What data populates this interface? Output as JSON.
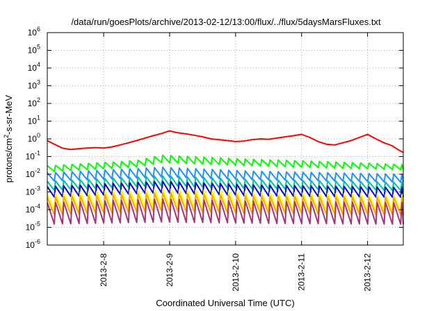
{
  "chart_data": {
    "type": "line",
    "title": "/data/run/goesPlots/archive/2013-02-12/13:00/flux/../flux/5daysMarsFluxes.txt",
    "xlabel": "Coordinated Universal Time (UTC)",
    "ylabel_parts": {
      "base": "protons/cm",
      "sup": "2",
      "rest": "-s-sr-MeV"
    },
    "y_scale": "log",
    "ylim": [
      1e-06,
      1000000.0
    ],
    "y_ticks": [
      {
        "value": 1e-06,
        "base": "10",
        "exp": "-6"
      },
      {
        "value": 1e-05,
        "base": "10",
        "exp": "-5"
      },
      {
        "value": 0.0001,
        "base": "10",
        "exp": "-4"
      },
      {
        "value": 0.001,
        "base": "10",
        "exp": "-3"
      },
      {
        "value": 0.01,
        "base": "10",
        "exp": "-2"
      },
      {
        "value": 0.1,
        "base": "10",
        "exp": "-1"
      },
      {
        "value": 1,
        "base": "10",
        "exp": "0"
      },
      {
        "value": 10,
        "base": "10",
        "exp": "1"
      },
      {
        "value": 100,
        "base": "10",
        "exp": "2"
      },
      {
        "value": 1000,
        "base": "10",
        "exp": "3"
      },
      {
        "value": 10000,
        "base": "10",
        "exp": "4"
      },
      {
        "value": 100000,
        "base": "10",
        "exp": "5"
      },
      {
        "value": 1000000,
        "base": "10",
        "exp": "6"
      }
    ],
    "xlim": [
      "2013-02-07T03:30",
      "2013-02-12T13:00"
    ],
    "x_ticks": [
      {
        "value": "2013-02-08T00:00",
        "label": "2013-2-8"
      },
      {
        "value": "2013-02-09T00:00",
        "label": "2013-2-9"
      },
      {
        "value": "2013-02-10T00:00",
        "label": "2013-2-10"
      },
      {
        "value": "2013-02-11T00:00",
        "label": "2013-2-11"
      },
      {
        "value": "2013-02-12T00:00",
        "label": "2013-2-12"
      }
    ],
    "grid": true,
    "series": [
      {
        "color": "#ff0000",
        "sawtooth": false,
        "x": [
          "2013-02-07T03:30",
          "2013-02-07T06:00",
          "2013-02-07T09:00",
          "2013-02-07T12:00",
          "2013-02-07T15:00",
          "2013-02-07T18:00",
          "2013-02-07T21:00",
          "2013-02-08T00:00",
          "2013-02-08T03:00",
          "2013-02-08T06:00",
          "2013-02-08T09:00",
          "2013-02-08T12:00",
          "2013-02-08T15:00",
          "2013-02-08T18:00",
          "2013-02-08T21:00",
          "2013-02-09T00:00",
          "2013-02-09T03:00",
          "2013-02-09T06:00",
          "2013-02-09T09:00",
          "2013-02-09T12:00",
          "2013-02-09T15:00",
          "2013-02-09T18:00",
          "2013-02-09T21:00",
          "2013-02-10T00:00",
          "2013-02-10T03:00",
          "2013-02-10T06:00",
          "2013-02-10T09:00",
          "2013-02-10T12:00",
          "2013-02-10T15:00",
          "2013-02-10T18:00",
          "2013-02-10T21:00",
          "2013-02-11T00:00",
          "2013-02-11T03:00",
          "2013-02-11T06:00",
          "2013-02-11T09:00",
          "2013-02-11T12:00",
          "2013-02-11T15:00",
          "2013-02-11T18:00",
          "2013-02-11T21:00",
          "2013-02-12T00:00",
          "2013-02-12T03:00",
          "2013-02-12T06:00",
          "2013-02-12T09:00",
          "2013-02-12T11:00",
          "2013-02-12T13:00"
        ],
        "y": [
          0.8,
          0.5,
          0.3,
          0.25,
          0.28,
          0.3,
          0.32,
          0.3,
          0.35,
          0.45,
          0.6,
          0.8,
          1.1,
          1.5,
          2.0,
          2.8,
          2.2,
          1.9,
          1.6,
          1.3,
          1.0,
          0.9,
          0.8,
          0.7,
          0.75,
          0.9,
          1.0,
          0.95,
          1.1,
          1.3,
          1.5,
          1.8,
          1.2,
          0.7,
          0.5,
          0.45,
          0.6,
          0.8,
          1.2,
          1.8,
          1.0,
          0.6,
          0.4,
          0.25,
          0.17
        ]
      },
      {
        "color": "#00ff00",
        "sawtooth": true,
        "period_hours": 3,
        "x": [
          "2013-02-07T03:30",
          "2013-02-08T12:00",
          "2013-02-08T21:00",
          "2013-02-10T06:00",
          "2013-02-11T12:00",
          "2013-02-12T13:00"
        ],
        "peak": [
          0.03,
          0.06,
          0.12,
          0.07,
          0.05,
          0.035
        ],
        "trough": [
          0.014,
          0.025,
          0.045,
          0.03,
          0.022,
          0.018
        ]
      },
      {
        "color": "#1e90ff",
        "sawtooth": true,
        "period_hours": 3,
        "x": [
          "2013-02-07T03:30",
          "2013-02-08T21:00",
          "2013-02-10T06:00",
          "2013-02-12T13:00"
        ],
        "peak": [
          0.012,
          0.025,
          0.015,
          0.01
        ],
        "trough": [
          0.004,
          0.007,
          0.005,
          0.0035
        ]
      },
      {
        "color": "#00c0a0",
        "sawtooth": true,
        "period_hours": 3,
        "x": [
          "2013-02-07T03:30",
          "2013-02-08T21:00",
          "2013-02-10T06:00",
          "2013-02-12T13:00"
        ],
        "peak": [
          0.004,
          0.008,
          0.005,
          0.0035
        ],
        "trough": [
          0.0012,
          0.0022,
          0.0015,
          0.0012
        ]
      },
      {
        "color": "#0000dd",
        "sawtooth": true,
        "period_hours": 3,
        "x": [
          "2013-02-07T03:30",
          "2013-02-08T21:00",
          "2013-02-10T06:00",
          "2013-02-12T13:00"
        ],
        "peak": [
          0.002,
          0.004,
          0.0025,
          0.0018
        ],
        "trough": [
          0.0005,
          0.0009,
          0.0006,
          0.0005
        ]
      },
      {
        "color": "#ffff00",
        "sawtooth": true,
        "period_hours": 3,
        "x": [
          "2013-02-07T03:30",
          "2013-02-08T21:00",
          "2013-02-10T06:00",
          "2013-02-12T13:00"
        ],
        "peak": [
          0.0008,
          0.0015,
          0.001,
          0.0007
        ],
        "trough": [
          9e-05,
          0.00015,
          0.0001,
          8e-05
        ]
      },
      {
        "color": "#ffa500",
        "sawtooth": true,
        "period_hours": 3,
        "x": [
          "2013-02-07T03:30",
          "2013-02-08T21:00",
          "2013-02-10T06:00",
          "2013-02-12T13:00"
        ],
        "peak": [
          0.0005,
          0.0009,
          0.0006,
          0.0005
        ],
        "trough": [
          5e-05,
          8e-05,
          6e-05,
          5e-05
        ]
      },
      {
        "color": "#aa3377",
        "sawtooth": true,
        "period_hours": 3,
        "x": [
          "2013-02-07T03:30",
          "2013-02-08T21:00",
          "2013-02-10T06:00",
          "2013-02-12T13:00"
        ],
        "peak": [
          0.00025,
          0.0004,
          0.0003,
          0.00025
        ],
        "trough": [
          1.5e-05,
          2e-05,
          1.7e-05,
          1.5e-05
        ]
      }
    ]
  }
}
